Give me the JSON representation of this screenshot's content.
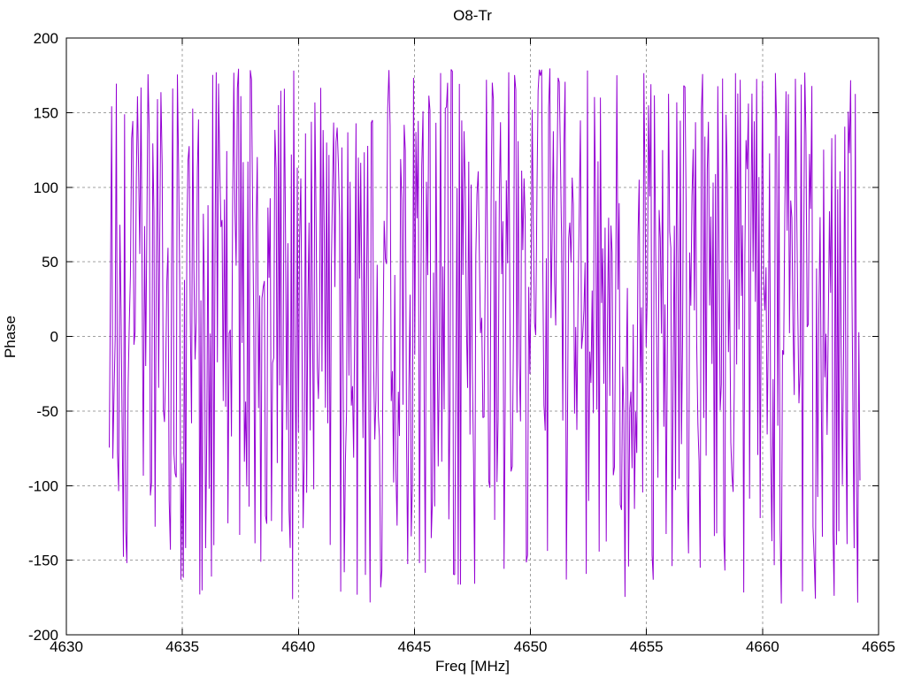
{
  "figure": {
    "background": "#ffffff",
    "text_color": "#000000",
    "grid_color": "#a0a0a0",
    "border_color": "#000000"
  },
  "chart_data": {
    "type": "line",
    "title": "O8-Tr",
    "xlabel": "Freq [MHz]",
    "ylabel": "Phase",
    "xlim": [
      4630,
      4665
    ],
    "ylim": [
      -200,
      200
    ],
    "xticks": [
      4630,
      4635,
      4640,
      4645,
      4650,
      4655,
      4660,
      4665
    ],
    "yticks": [
      -200,
      -150,
      -100,
      -50,
      0,
      50,
      100,
      150,
      200
    ],
    "grid": {
      "visible": true,
      "style": "dashed",
      "color": "#a0a0a0"
    },
    "legend": {
      "visible": false
    },
    "series": [
      {
        "name": "O8-Tr",
        "color": "#9400d3",
        "x_unit": "MHz",
        "y_unit": "deg",
        "x_start": 4631.85,
        "x_end": 4664.2,
        "n_points": 640,
        "y_min": -180,
        "y_max": 180,
        "description": "Phase response wrapped to +/-180 degrees; dense pseudo-random vertical oscillation spanning nearly the full +/-180 range across the whole band, slightly denser in the upper half",
        "seed": 20240613
      }
    ]
  }
}
